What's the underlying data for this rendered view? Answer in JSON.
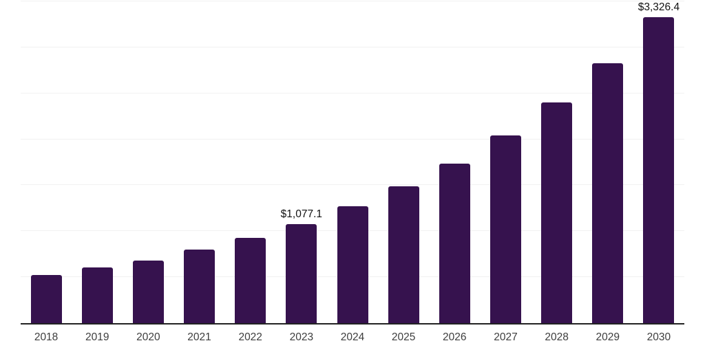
{
  "chart_data": {
    "type": "bar",
    "title": "",
    "xlabel": "",
    "ylabel": "",
    "categories": [
      "2018",
      "2019",
      "2020",
      "2021",
      "2022",
      "2023",
      "2024",
      "2025",
      "2026",
      "2027",
      "2028",
      "2029",
      "2030"
    ],
    "values": [
      525,
      605,
      683,
      801,
      931,
      1077.1,
      1272,
      1489,
      1735,
      2045,
      2402,
      2828,
      3326.4
    ],
    "point_labels": [
      {
        "category": "2023",
        "text": "$1,077.1"
      },
      {
        "category": "2030",
        "text": "$3,326.4"
      }
    ],
    "ylim": [
      0,
      3500
    ],
    "grid_step": 500,
    "grid": true,
    "legend": false,
    "y_axis_labels_visible": false,
    "colors": {
      "bar": "#36124e",
      "gridline": "#f1f1f1",
      "axis_line": "#222222",
      "tick_label": "#3d3d3d",
      "value_label": "#111111",
      "background": "#ffffff"
    }
  }
}
